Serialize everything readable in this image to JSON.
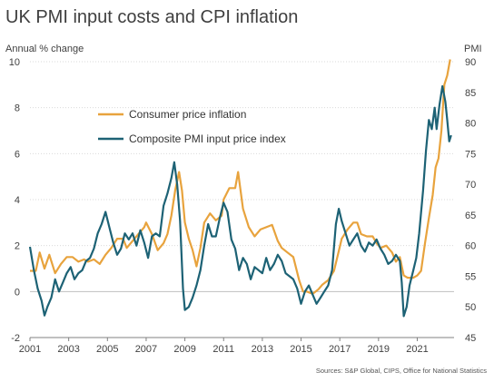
{
  "title": "UK PMI input costs and CPI inflation",
  "source": "Sources: S&P Global, CIPS, Office for National Statistics",
  "chart_data": {
    "type": "line",
    "ylabel_left": "Annual % change",
    "ylabel_right": "PMI",
    "x_ticks": [
      "2001",
      "2003",
      "2005",
      "2007",
      "2009",
      "2011",
      "2013",
      "2015",
      "2017",
      "2019",
      "2021"
    ],
    "x_range": [
      2001.0,
      2022.9
    ],
    "y_left_ticks": [
      "-2",
      "0",
      "2",
      "4",
      "6",
      "8",
      "10"
    ],
    "y_left_range": [
      -2,
      10
    ],
    "y_right_ticks": [
      "45",
      "50",
      "55",
      "60",
      "65",
      "70",
      "75",
      "80",
      "85",
      "90"
    ],
    "y_right_range": [
      45,
      90
    ],
    "grid": true,
    "legend_position": "top-left",
    "series": [
      {
        "name": "Consumer price inflation",
        "axis": "left",
        "color": "#E8A33D",
        "points": [
          [
            2001.0,
            0.9
          ],
          [
            2001.3,
            0.9
          ],
          [
            2001.5,
            1.7
          ],
          [
            2001.75,
            1.0
          ],
          [
            2002.0,
            1.6
          ],
          [
            2002.3,
            0.8
          ],
          [
            2002.6,
            1.2
          ],
          [
            2002.9,
            1.5
          ],
          [
            2003.2,
            1.5
          ],
          [
            2003.5,
            1.3
          ],
          [
            2003.8,
            1.4
          ],
          [
            2004.0,
            1.3
          ],
          [
            2004.3,
            1.4
          ],
          [
            2004.6,
            1.2
          ],
          [
            2004.9,
            1.6
          ],
          [
            2005.2,
            1.9
          ],
          [
            2005.5,
            2.3
          ],
          [
            2005.8,
            2.3
          ],
          [
            2006.0,
            1.9
          ],
          [
            2006.3,
            2.2
          ],
          [
            2006.6,
            2.5
          ],
          [
            2006.9,
            2.8
          ],
          [
            2007.0,
            3.0
          ],
          [
            2007.3,
            2.5
          ],
          [
            2007.6,
            1.8
          ],
          [
            2007.9,
            2.1
          ],
          [
            2008.1,
            2.5
          ],
          [
            2008.3,
            3.3
          ],
          [
            2008.5,
            4.4
          ],
          [
            2008.7,
            5.2
          ],
          [
            2008.85,
            4.4
          ],
          [
            2009.0,
            3.0
          ],
          [
            2009.2,
            2.3
          ],
          [
            2009.4,
            1.8
          ],
          [
            2009.6,
            1.1
          ],
          [
            2009.8,
            1.9
          ],
          [
            2010.0,
            3.0
          ],
          [
            2010.3,
            3.4
          ],
          [
            2010.6,
            3.1
          ],
          [
            2010.9,
            3.3
          ],
          [
            2011.0,
            4.0
          ],
          [
            2011.3,
            4.5
          ],
          [
            2011.6,
            4.5
          ],
          [
            2011.75,
            5.2
          ],
          [
            2012.0,
            3.6
          ],
          [
            2012.3,
            2.8
          ],
          [
            2012.6,
            2.4
          ],
          [
            2012.9,
            2.7
          ],
          [
            2013.2,
            2.8
          ],
          [
            2013.5,
            2.9
          ],
          [
            2013.8,
            2.2
          ],
          [
            2014.0,
            1.9
          ],
          [
            2014.3,
            1.7
          ],
          [
            2014.6,
            1.5
          ],
          [
            2014.9,
            0.5
          ],
          [
            2015.1,
            0.0
          ],
          [
            2015.3,
            0.0
          ],
          [
            2015.6,
            -0.1
          ],
          [
            2015.9,
            0.1
          ],
          [
            2016.1,
            0.3
          ],
          [
            2016.4,
            0.5
          ],
          [
            2016.7,
            0.9
          ],
          [
            2016.9,
            1.6
          ],
          [
            2017.1,
            2.3
          ],
          [
            2017.4,
            2.7
          ],
          [
            2017.7,
            3.0
          ],
          [
            2017.9,
            3.0
          ],
          [
            2018.1,
            2.5
          ],
          [
            2018.4,
            2.4
          ],
          [
            2018.7,
            2.4
          ],
          [
            2018.9,
            2.1
          ],
          [
            2019.1,
            1.9
          ],
          [
            2019.4,
            2.0
          ],
          [
            2019.7,
            1.7
          ],
          [
            2019.9,
            1.3
          ],
          [
            2020.1,
            1.5
          ],
          [
            2020.3,
            0.7
          ],
          [
            2020.5,
            0.6
          ],
          [
            2020.8,
            0.6
          ],
          [
            2021.0,
            0.7
          ],
          [
            2021.2,
            0.9
          ],
          [
            2021.4,
            2.1
          ],
          [
            2021.6,
            3.2
          ],
          [
            2021.8,
            4.2
          ],
          [
            2021.95,
            5.4
          ],
          [
            2022.1,
            5.8
          ],
          [
            2022.25,
            7.0
          ],
          [
            2022.4,
            9.0
          ],
          [
            2022.55,
            9.4
          ],
          [
            2022.7,
            10.1
          ]
        ]
      },
      {
        "name": "Composite PMI input price index",
        "axis": "right",
        "color": "#1D6275",
        "points": [
          [
            2001.0,
            59.8
          ],
          [
            2001.2,
            56.0
          ],
          [
            2001.4,
            53.0
          ],
          [
            2001.6,
            51.0
          ],
          [
            2001.75,
            48.6
          ],
          [
            2001.9,
            50.0
          ],
          [
            2002.1,
            51.5
          ],
          [
            2002.3,
            54.5
          ],
          [
            2002.5,
            52.5
          ],
          [
            2002.7,
            54.0
          ],
          [
            2002.9,
            55.5
          ],
          [
            2003.1,
            56.5
          ],
          [
            2003.3,
            54.5
          ],
          [
            2003.5,
            55.5
          ],
          [
            2003.7,
            56.0
          ],
          [
            2003.9,
            57.5
          ],
          [
            2004.1,
            58.0
          ],
          [
            2004.3,
            59.5
          ],
          [
            2004.5,
            62.0
          ],
          [
            2004.7,
            63.5
          ],
          [
            2004.9,
            65.5
          ],
          [
            2005.1,
            63.0
          ],
          [
            2005.3,
            60.5
          ],
          [
            2005.5,
            58.5
          ],
          [
            2005.7,
            59.5
          ],
          [
            2005.9,
            62.0
          ],
          [
            2006.1,
            61.0
          ],
          [
            2006.3,
            62.0
          ],
          [
            2006.5,
            60.0
          ],
          [
            2006.7,
            62.5
          ],
          [
            2006.9,
            60.5
          ],
          [
            2007.1,
            58.0
          ],
          [
            2007.3,
            61.5
          ],
          [
            2007.5,
            62.0
          ],
          [
            2007.7,
            61.5
          ],
          [
            2007.9,
            66.5
          ],
          [
            2008.1,
            68.5
          ],
          [
            2008.3,
            71.0
          ],
          [
            2008.45,
            73.6
          ],
          [
            2008.6,
            70.0
          ],
          [
            2008.75,
            64.0
          ],
          [
            2008.9,
            53.0
          ],
          [
            2009.0,
            49.5
          ],
          [
            2009.2,
            50.0
          ],
          [
            2009.4,
            51.5
          ],
          [
            2009.6,
            53.5
          ],
          [
            2009.8,
            56.0
          ],
          [
            2010.0,
            60.0
          ],
          [
            2010.2,
            63.5
          ],
          [
            2010.4,
            61.5
          ],
          [
            2010.6,
            61.5
          ],
          [
            2010.8,
            64.5
          ],
          [
            2011.0,
            67.0
          ],
          [
            2011.2,
            65.5
          ],
          [
            2011.4,
            61.0
          ],
          [
            2011.6,
            59.5
          ],
          [
            2011.8,
            56.0
          ],
          [
            2012.0,
            58.0
          ],
          [
            2012.2,
            57.0
          ],
          [
            2012.4,
            54.5
          ],
          [
            2012.6,
            56.5
          ],
          [
            2012.8,
            56.0
          ],
          [
            2013.0,
            55.5
          ],
          [
            2013.2,
            58.0
          ],
          [
            2013.4,
            56.0
          ],
          [
            2013.6,
            57.0
          ],
          [
            2013.8,
            58.5
          ],
          [
            2014.0,
            57.5
          ],
          [
            2014.2,
            55.5
          ],
          [
            2014.4,
            55.0
          ],
          [
            2014.6,
            54.5
          ],
          [
            2014.8,
            53.0
          ],
          [
            2015.0,
            50.5
          ],
          [
            2015.2,
            52.5
          ],
          [
            2015.4,
            53.5
          ],
          [
            2015.6,
            52.0
          ],
          [
            2015.8,
            50.5
          ],
          [
            2016.0,
            51.5
          ],
          [
            2016.2,
            52.5
          ],
          [
            2016.4,
            53.5
          ],
          [
            2016.6,
            56.0
          ],
          [
            2016.8,
            63.5
          ],
          [
            2016.95,
            66.0
          ],
          [
            2017.1,
            64.0
          ],
          [
            2017.3,
            62.0
          ],
          [
            2017.5,
            60.0
          ],
          [
            2017.7,
            61.0
          ],
          [
            2017.9,
            62.0
          ],
          [
            2018.1,
            60.0
          ],
          [
            2018.3,
            59.0
          ],
          [
            2018.5,
            60.5
          ],
          [
            2018.7,
            60.0
          ],
          [
            2018.9,
            61.0
          ],
          [
            2019.1,
            59.5
          ],
          [
            2019.3,
            58.5
          ],
          [
            2019.5,
            57.0
          ],
          [
            2019.7,
            57.5
          ],
          [
            2019.9,
            58.5
          ],
          [
            2020.1,
            57.5
          ],
          [
            2020.2,
            54.0
          ],
          [
            2020.3,
            48.5
          ],
          [
            2020.45,
            50.0
          ],
          [
            2020.6,
            53.5
          ],
          [
            2020.8,
            56.0
          ],
          [
            2020.95,
            58.0
          ],
          [
            2021.1,
            62.0
          ],
          [
            2021.3,
            69.0
          ],
          [
            2021.45,
            75.5
          ],
          [
            2021.6,
            80.5
          ],
          [
            2021.75,
            79.0
          ],
          [
            2021.9,
            82.5
          ],
          [
            2022.0,
            79.0
          ],
          [
            2022.15,
            83.0
          ],
          [
            2022.3,
            86.0
          ],
          [
            2022.45,
            83.5
          ],
          [
            2022.55,
            80.5
          ],
          [
            2022.65,
            77.0
          ],
          [
            2022.75,
            78.0
          ]
        ]
      }
    ]
  }
}
